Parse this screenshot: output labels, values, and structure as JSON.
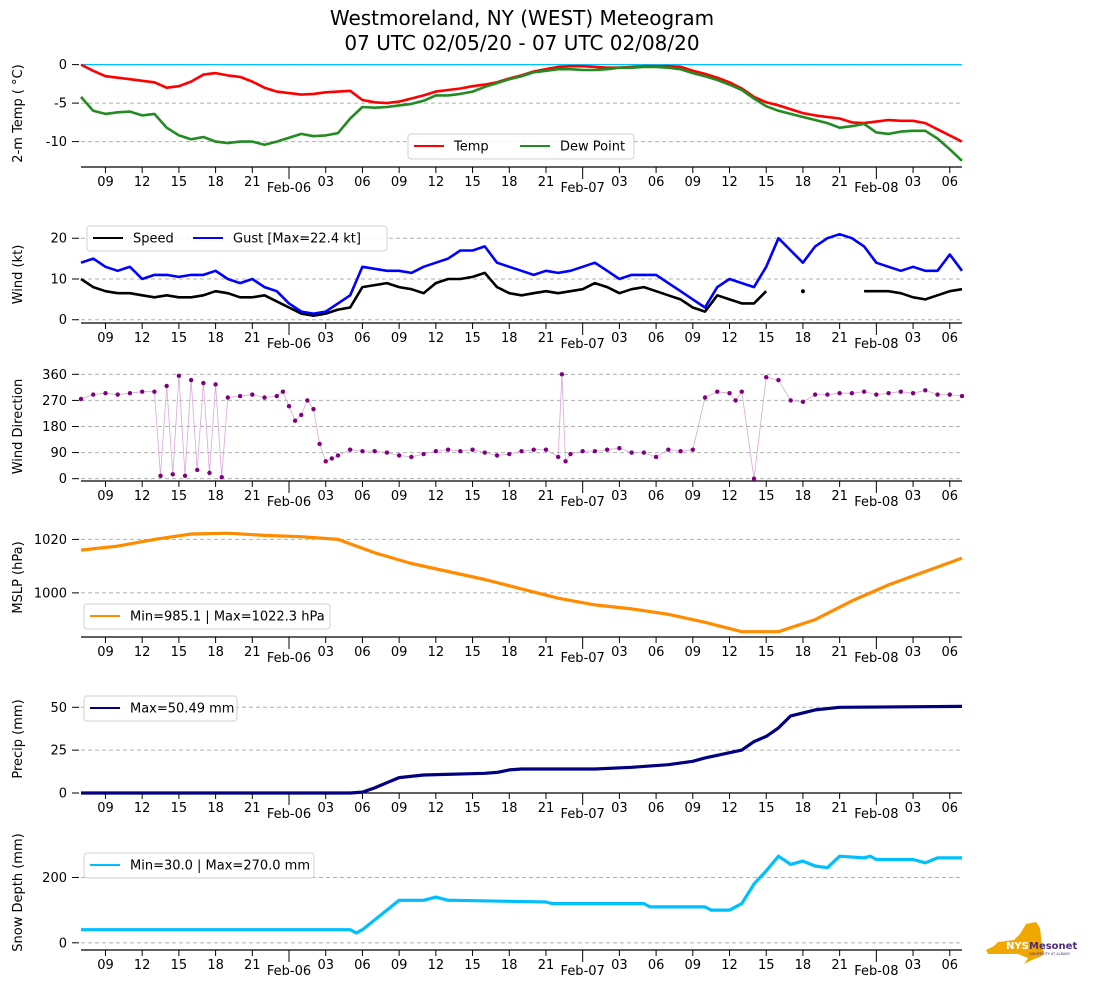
{
  "title": {
    "line1": "Westmoreland, NY (WEST) Meteogram",
    "line2": "07 UTC 02/05/20 - 07 UTC 02/08/20"
  },
  "logo": {
    "primary": "NYS",
    "secondary": "Mesonet",
    "tagline": "UNIVERSITY AT ALBANY",
    "state_color": "#f0a800",
    "text_color": "#4b2c7a"
  },
  "chart_data": [
    {
      "type": "line",
      "id": "temp",
      "ylabel": "2-m Temp ( °C)",
      "ylim": [
        -13.3,
        0.6
      ],
      "yticks": [
        0,
        -5,
        -10
      ],
      "grid": true,
      "reference_line": {
        "y": 0,
        "color": "#00bfff"
      },
      "legend": {
        "placement": "bottom-center",
        "ncol": 2
      },
      "x_hours": [
        0,
        1,
        2,
        3,
        4,
        5,
        6,
        7,
        8,
        9,
        10,
        11,
        12,
        13,
        14,
        15,
        16,
        17,
        18,
        19,
        20,
        21,
        22,
        23,
        24,
        25,
        26,
        27,
        28,
        29,
        30,
        31,
        32,
        33,
        34,
        35,
        36,
        37,
        38,
        39,
        40,
        41,
        42,
        43,
        44,
        45,
        46,
        47,
        48,
        49,
        50,
        51,
        52,
        53,
        54,
        55,
        56,
        57,
        58,
        59,
        60,
        61,
        62,
        63,
        64,
        65,
        66,
        67,
        68,
        69,
        70,
        71,
        72
      ],
      "series": [
        {
          "name": "Temp",
          "color": "#ff0000",
          "values": [
            0,
            -0.8,
            -1.5,
            -1.7,
            -1.9,
            -2.1,
            -2.3,
            -3.0,
            -2.8,
            -2.2,
            -1.3,
            -1.1,
            -1.4,
            -1.6,
            -2.2,
            -3.0,
            -3.5,
            -3.7,
            -3.9,
            -3.8,
            -3.6,
            -3.5,
            -3.4,
            -4.6,
            -4.9,
            -5.0,
            -4.8,
            -4.4,
            -4.0,
            -3.5,
            -3.3,
            -3.1,
            -2.8,
            -2.6,
            -2.3,
            -1.8,
            -1.4,
            -0.9,
            -0.6,
            -0.3,
            -0.2,
            -0.2,
            -0.3,
            -0.4,
            -0.4,
            -0.3,
            -0.2,
            -0.2,
            -0.2,
            -0.3,
            -0.8,
            -1.2,
            -1.7,
            -2.3,
            -3.1,
            -4.2,
            -4.9,
            -5.3,
            -5.8,
            -6.3,
            -6.6,
            -6.8,
            -7.0,
            -7.5,
            -7.6,
            -7.4,
            -7.2,
            -7.3,
            -7.3,
            -7.6,
            -8.4,
            -9.2,
            -10.0
          ]
        },
        {
          "name": "Dew Point",
          "color": "#228b22",
          "values": [
            -4.2,
            -6.0,
            -6.4,
            -6.2,
            -6.1,
            -6.6,
            -6.4,
            -8.2,
            -9.2,
            -9.7,
            -9.4,
            -10.0,
            -10.2,
            -10.0,
            -10.0,
            -10.4,
            -10.0,
            -9.5,
            -9.0,
            -9.3,
            -9.2,
            -8.9,
            -7.0,
            -5.5,
            -5.6,
            -5.5,
            -5.3,
            -5.1,
            -4.7,
            -4.0,
            -4.0,
            -3.8,
            -3.5,
            -2.9,
            -2.4,
            -1.9,
            -1.5,
            -1.0,
            -0.8,
            -0.6,
            -0.6,
            -0.7,
            -0.7,
            -0.6,
            -0.4,
            -0.4,
            -0.3,
            -0.3,
            -0.4,
            -0.6,
            -1.1,
            -1.5,
            -2.0,
            -2.6,
            -3.3,
            -4.4,
            -5.4,
            -6.0,
            -6.4,
            -6.8,
            -7.2,
            -7.6,
            -8.2,
            -8.0,
            -7.7,
            -8.8,
            -9.0,
            -8.7,
            -8.6,
            -8.6,
            -9.6,
            -11.0,
            -12.5
          ]
        }
      ]
    },
    {
      "type": "line",
      "id": "wind",
      "ylabel": "Wind (kt)",
      "ylim": [
        -0.8,
        23
      ],
      "yticks": [
        0,
        10,
        20
      ],
      "grid": true,
      "legend": {
        "placement": "top-left",
        "ncol": 2
      },
      "x_hours": [
        0,
        1,
        2,
        3,
        4,
        5,
        6,
        7,
        8,
        9,
        10,
        11,
        12,
        13,
        14,
        15,
        16,
        17,
        18,
        19,
        20,
        21,
        22,
        23,
        24,
        25,
        26,
        27,
        28,
        29,
        30,
        31,
        32,
        33,
        34,
        35,
        36,
        37,
        38,
        39,
        40,
        41,
        42,
        43,
        44,
        45,
        46,
        47,
        48,
        49,
        50,
        51,
        52,
        53,
        54,
        55,
        56,
        57,
        58,
        59,
        60,
        61,
        62,
        63,
        64,
        65,
        66,
        67,
        68,
        69,
        70,
        71,
        72
      ],
      "series": [
        {
          "name": "Speed",
          "color": "#000000",
          "values": [
            10,
            8,
            7,
            6.5,
            6.5,
            6,
            5.5,
            6,
            5.5,
            5.5,
            6,
            7,
            6.5,
            5.5,
            5.5,
            6,
            4.5,
            3,
            1.5,
            1,
            1.5,
            2.5,
            3,
            8,
            8.5,
            9,
            8,
            7.5,
            6.5,
            9,
            10,
            10,
            10.5,
            11.5,
            8,
            6.5,
            6,
            6.5,
            7,
            6.5,
            7,
            7.5,
            9,
            8,
            6.5,
            7.5,
            8,
            7,
            6,
            5,
            3,
            2,
            6,
            5,
            4,
            4,
            7,
            null,
            null,
            7,
            null,
            null,
            null,
            null,
            7,
            7,
            7,
            6.5,
            5.5,
            5,
            6,
            7,
            7.5
          ]
        },
        {
          "name": "Gust [Max=22.4 kt]",
          "color": "#0000ff",
          "values": [
            14,
            15,
            13,
            12,
            13,
            10,
            11,
            11,
            10.5,
            11,
            11,
            12,
            10,
            9,
            10,
            8,
            7,
            4,
            2,
            1.5,
            2,
            4,
            6,
            13,
            12.5,
            12,
            12,
            11.5,
            13,
            14,
            15,
            17,
            17,
            18,
            14,
            13,
            12,
            11,
            12,
            11.5,
            12,
            13,
            14,
            12,
            10,
            11,
            11,
            11,
            9,
            7,
            5,
            3,
            8,
            10,
            9,
            8,
            13,
            20,
            17,
            14,
            18,
            20,
            21,
            20,
            18,
            14,
            13,
            12,
            13,
            12,
            12,
            16,
            12
          ]
        }
      ]
    },
    {
      "type": "scatter",
      "id": "wind_direction",
      "ylabel": "Wind Direction",
      "ylim": [
        -8,
        368
      ],
      "yticks": [
        0,
        90,
        180,
        270,
        360
      ],
      "grid": true,
      "color": "#800080",
      "x_hours": [
        0,
        1,
        2,
        3,
        4,
        5,
        6,
        6.5,
        7,
        7.5,
        8,
        8.5,
        9,
        9.5,
        10,
        10.5,
        11,
        11.5,
        12,
        13,
        14,
        15,
        16,
        16.5,
        17,
        17.5,
        18,
        18.5,
        19,
        19.5,
        20,
        20.5,
        21,
        22,
        23,
        24,
        25,
        26,
        27,
        28,
        29,
        30,
        31,
        32,
        33,
        34,
        35,
        36,
        37,
        38,
        39,
        39.3,
        39.6,
        40,
        41,
        42,
        43,
        44,
        45,
        46,
        47,
        48,
        49,
        50,
        51,
        52,
        53,
        53.5,
        54,
        55,
        56,
        57,
        58,
        59,
        60,
        61,
        62,
        63,
        64,
        65,
        66,
        67,
        68,
        69,
        70,
        71,
        72
      ],
      "values": [
        275,
        290,
        295,
        290,
        295,
        300,
        300,
        10,
        320,
        15,
        355,
        10,
        340,
        30,
        330,
        20,
        325,
        5,
        280,
        285,
        290,
        280,
        285,
        300,
        250,
        200,
        220,
        270,
        240,
        120,
        60,
        70,
        80,
        100,
        95,
        95,
        90,
        80,
        75,
        85,
        95,
        100,
        95,
        100,
        90,
        80,
        85,
        95,
        100,
        100,
        75,
        360,
        60,
        85,
        95,
        95,
        100,
        105,
        90,
        90,
        75,
        100,
        95,
        100,
        280,
        300,
        295,
        270,
        300,
        0,
        350,
        340,
        270,
        265,
        290,
        290,
        295,
        295,
        300,
        290,
        295,
        300,
        295,
        305,
        290,
        290,
        285
      ]
    },
    {
      "type": "line",
      "id": "mslp",
      "ylabel": "MSLP (hPa)",
      "ylim": [
        983.5,
        1028
      ],
      "yticks": [
        1000,
        1020
      ],
      "grid": true,
      "color": "#ff8c00",
      "legend": {
        "placement": "bottom-left",
        "label": "Min=985.1 | Max=1022.3 hPa"
      },
      "x_hours": [
        0,
        3,
        6,
        9,
        12,
        15,
        18,
        21,
        24,
        27,
        30,
        33,
        36,
        39,
        42,
        45,
        48,
        51,
        54,
        57,
        60,
        63,
        66,
        69,
        72
      ],
      "values": [
        1016,
        1017.5,
        1020,
        1022,
        1022.3,
        1021.5,
        1021,
        1020,
        1015,
        1011,
        1008,
        1005,
        1001.5,
        998,
        995.5,
        994,
        992,
        989,
        985.5,
        985.5,
        990,
        997,
        1003,
        1008,
        1013
      ]
    },
    {
      "type": "line",
      "id": "precip",
      "ylabel": "Precip (mm)",
      "ylim": [
        0,
        63
      ],
      "yticks": [
        0,
        25,
        50
      ],
      "grid": true,
      "color": "#000080",
      "legend": {
        "placement": "top-left",
        "label": "Max=50.49 mm"
      },
      "x_hours": [
        0,
        22,
        23,
        24,
        25,
        26,
        28,
        33,
        34,
        35,
        36,
        42,
        45,
        48,
        50,
        51,
        52,
        54,
        55,
        56,
        57,
        58,
        60,
        62,
        72
      ],
      "values": [
        0,
        0,
        0.5,
        3,
        6,
        9,
        10.5,
        11.5,
        12,
        13.5,
        14,
        14,
        15,
        16.5,
        18.5,
        20.5,
        22,
        25,
        30,
        33,
        38,
        45,
        48.5,
        50,
        50.49
      ]
    },
    {
      "type": "line",
      "id": "snow_depth",
      "ylabel": "Snow Depth (mm)",
      "ylim": [
        -22,
        330
      ],
      "yticks": [
        0,
        200
      ],
      "grid": true,
      "color": "#00bfff",
      "legend": {
        "placement": "top-left",
        "label": "Min=30.0 | Max=270.0 mm"
      },
      "x_hours": [
        0,
        22,
        22.5,
        23,
        24,
        25,
        26,
        28,
        29,
        30,
        30.5,
        38,
        38.5,
        46,
        46.5,
        51,
        51.5,
        53,
        54,
        55,
        56,
        57,
        58,
        59,
        60,
        61,
        62,
        64,
        64.5,
        65,
        68,
        69,
        70,
        71,
        72
      ],
      "values": [
        40,
        40,
        30,
        40,
        70,
        100,
        130,
        130,
        140,
        130,
        130,
        125,
        120,
        120,
        110,
        110,
        100,
        100,
        120,
        180,
        220,
        265,
        240,
        250,
        235,
        230,
        265,
        260,
        265,
        255,
        255,
        245,
        260,
        260,
        260
      ]
    }
  ],
  "x_axis": {
    "start": "07 UTC 02/05/20",
    "end": "07 UTC 02/08/20",
    "tick_labels": [
      "09",
      "12",
      "15",
      "18",
      "21",
      "Feb-06",
      "03",
      "06",
      "09",
      "12",
      "15",
      "18",
      "21",
      "Feb-07",
      "03",
      "06",
      "09",
      "12",
      "15",
      "18",
      "21",
      "Feb-08",
      "03",
      "06"
    ]
  }
}
